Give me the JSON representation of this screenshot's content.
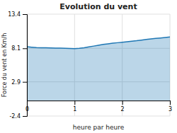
{
  "chart_data": {
    "type": "area",
    "title": "Evolution du vent",
    "xlabel": "heure par heure",
    "ylabel": "Force du vent en Km/h",
    "x": [
      0.0,
      0.1,
      0.2,
      0.3,
      0.4,
      0.5,
      0.6,
      0.7,
      0.8,
      0.9,
      1.0,
      1.1,
      1.2,
      1.3,
      1.4,
      1.5,
      1.6,
      1.7,
      1.8,
      1.9,
      2.0,
      2.1,
      2.2,
      2.3,
      2.4,
      2.5,
      2.6,
      2.7,
      2.8,
      2.9,
      3.0
    ],
    "values": [
      8.35,
      8.28,
      8.22,
      8.2,
      8.18,
      8.16,
      8.14,
      8.12,
      8.1,
      8.08,
      8.05,
      8.1,
      8.2,
      8.32,
      8.45,
      8.58,
      8.7,
      8.8,
      8.9,
      8.97,
      9.05,
      9.12,
      9.2,
      9.28,
      9.38,
      9.48,
      9.56,
      9.63,
      9.7,
      9.77,
      9.85
    ],
    "xlim": [
      0,
      3
    ],
    "ylim": [
      -2.4,
      13.4
    ],
    "xticks": [
      0,
      1,
      2,
      3
    ],
    "yticks": [
      -2.4,
      2.9,
      8.1,
      13.4
    ],
    "grid": true
  }
}
